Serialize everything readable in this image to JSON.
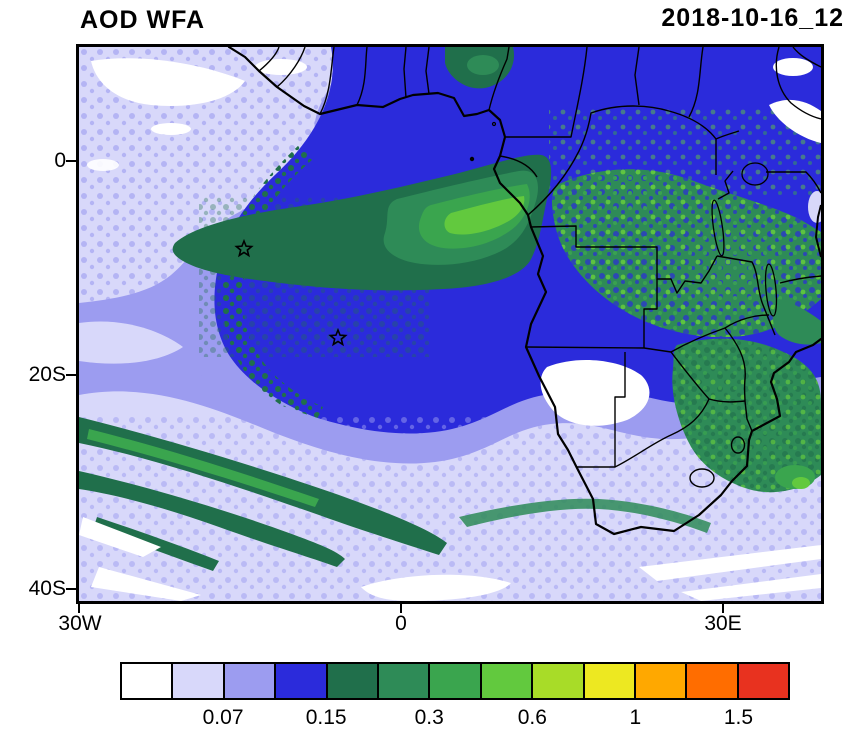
{
  "header": {
    "title": "AOD WFA",
    "timestamp": "2018-10-16_12"
  },
  "chart_data": {
    "type": "heatmap",
    "title": "AOD WFA",
    "timestamp": "2018-10-16_12",
    "field": "AOD",
    "x_axis": {
      "tick_labels": [
        "30W",
        "0",
        "30E"
      ],
      "range_deg_lon": [
        -30,
        39
      ]
    },
    "y_axis": {
      "tick_labels": [
        "0",
        "20S",
        "40S"
      ],
      "range_deg_lat": [
        -41,
        11
      ]
    },
    "colorbar": {
      "tick_labels": [
        "0.07",
        "0.15",
        "0.3",
        "0.6",
        "1",
        "1.5"
      ],
      "colors": [
        "#FFFFFF",
        "#D8D8FA",
        "#9C9CF0",
        "#2B2BDB",
        "#206F4B",
        "#2E8B57",
        "#3AA54E",
        "#62C93E",
        "#A8DC28",
        "#EDE821",
        "#FFA800",
        "#FF6D00",
        "#E8321F"
      ],
      "cells": 13
    },
    "markers": [
      {
        "shape": "star",
        "lon_deg": -14.6,
        "lat_deg": -8.2
      },
      {
        "shape": "star",
        "lon_deg": -5.9,
        "lat_deg": -16.5
      }
    ]
  }
}
